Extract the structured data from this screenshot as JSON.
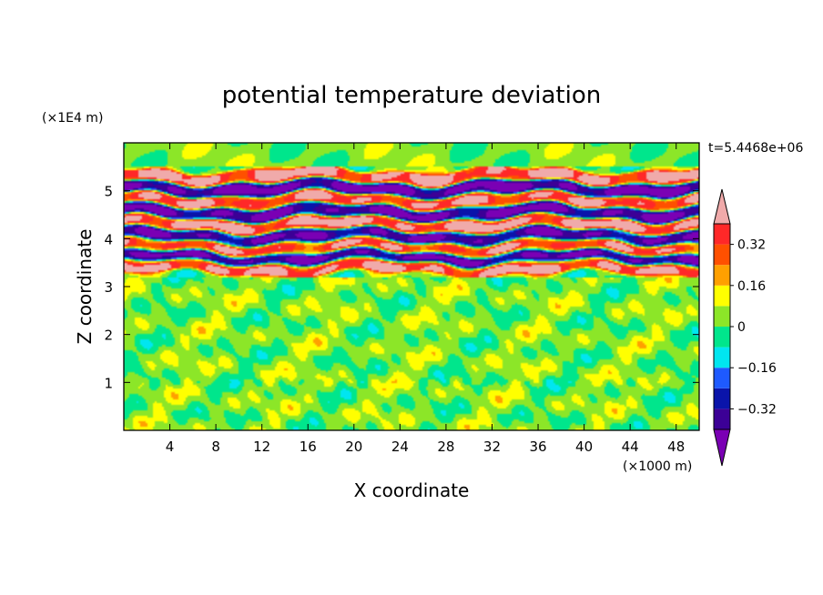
{
  "chart_data": {
    "type": "heatmap",
    "title": "potential temperature deviation",
    "xlabel": "X coordinate",
    "ylabel": "Z coordinate",
    "x_unit": "(×1000 m)",
    "y_unit": "(×1E4 m)",
    "time_label": "t=5.4468e+06",
    "xlim": [
      0,
      50
    ],
    "ylim": [
      0,
      6
    ],
    "x_ticks": [
      {
        "value": 4,
        "label": "4"
      },
      {
        "value": 8,
        "label": "8"
      },
      {
        "value": 12,
        "label": "12"
      },
      {
        "value": 16,
        "label": "16"
      },
      {
        "value": 20,
        "label": "20"
      },
      {
        "value": 24,
        "label": "24"
      },
      {
        "value": 28,
        "label": "28"
      },
      {
        "value": 32,
        "label": "32"
      },
      {
        "value": 36,
        "label": "36"
      },
      {
        "value": 40,
        "label": "40"
      },
      {
        "value": 44,
        "label": "44"
      },
      {
        "value": 48,
        "label": "48"
      }
    ],
    "y_ticks": [
      {
        "value": 1,
        "label": "1"
      },
      {
        "value": 2,
        "label": "2"
      },
      {
        "value": 3,
        "label": "3"
      },
      {
        "value": 4,
        "label": "4"
      },
      {
        "value": 5,
        "label": "5"
      }
    ],
    "colorbar": {
      "levels": [
        -0.4,
        -0.32,
        -0.24,
        -0.16,
        -0.08,
        0,
        0.08,
        0.16,
        0.24,
        0.32,
        0.4
      ],
      "colors": [
        "#7a00b4",
        "#3c0096",
        "#0a14aa",
        "#1e5aff",
        "#00e6f0",
        "#00e68c",
        "#8ce628",
        "#ffff00",
        "#ffa000",
        "#ff5000",
        "#ff2828",
        "#f0aaaa"
      ],
      "tick_labels": [
        {
          "value": 0.32,
          "label": "0.32"
        },
        {
          "value": 0.16,
          "label": "0.16"
        },
        {
          "value": 0,
          "label": "0"
        },
        {
          "value": -0.16,
          "label": "−0.16"
        },
        {
          "value": -0.32,
          "label": "−0.32"
        }
      ]
    },
    "field": {
      "description": "near-zero deviations below z=3.2 (x1E4 m); strong alternating layers of +/-0.4 between z=3.2 and 5.5",
      "lower_region_top": 3.2,
      "upper_region_top": 5.5,
      "bands": [
        {
          "z": 5.3,
          "value": 0.42
        },
        {
          "z": 5.05,
          "value": -0.44
        },
        {
          "z": 4.8,
          "value": 0.4
        },
        {
          "z": 4.55,
          "value": -0.42
        },
        {
          "z": 4.3,
          "value": 0.44
        },
        {
          "z": 4.05,
          "value": -0.4
        },
        {
          "z": 3.82,
          "value": 0.38
        },
        {
          "z": 3.6,
          "value": -0.44
        },
        {
          "z": 3.4,
          "value": 0.42
        }
      ]
    }
  }
}
